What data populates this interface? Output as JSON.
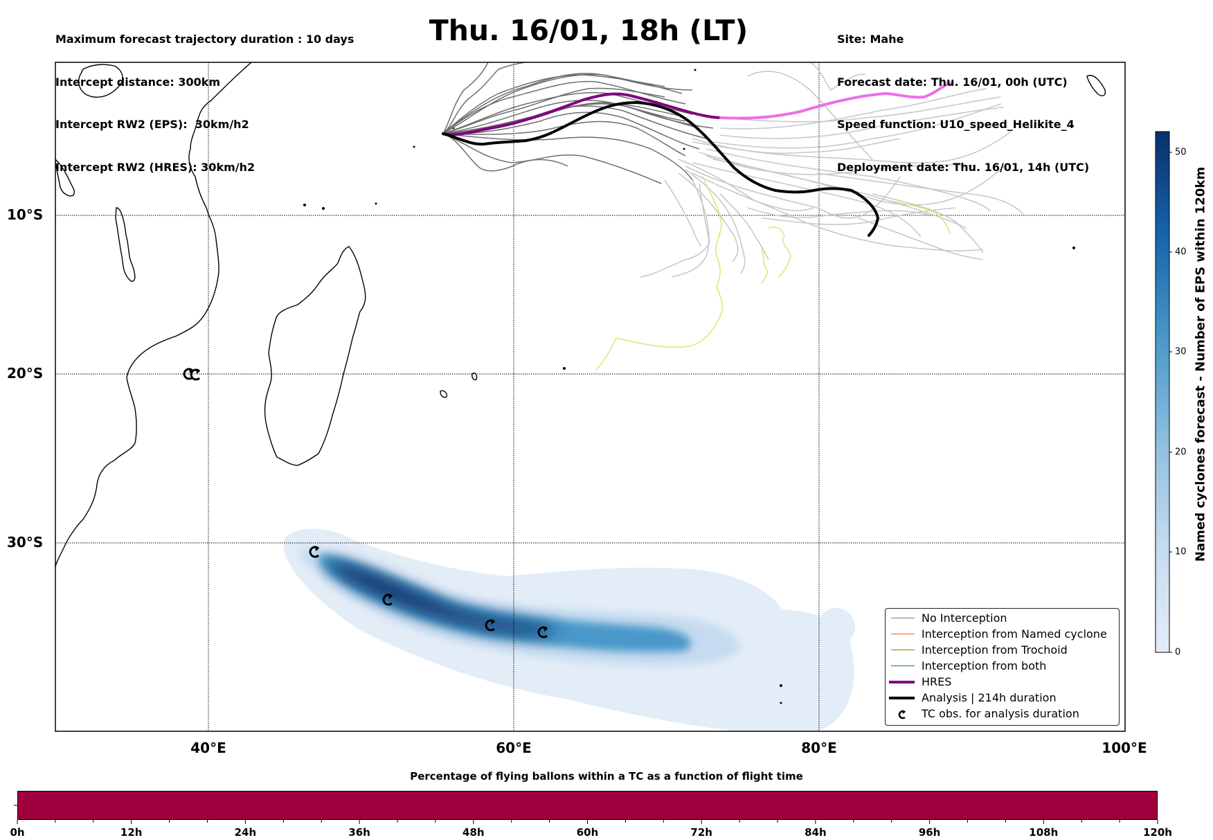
{
  "header": {
    "title": "Thu. 16/01, 18h (LT)",
    "left_lines": [
      "Maximum forecast trajectory duration : 10 days",
      "Intercept distance: 300km",
      "Intercept RW2 (EPS):  30km/h2",
      "Intercept RW2 (HRES): 30km/h2"
    ],
    "right_lines": [
      "Site: Mahe",
      "Forecast date: Thu. 16/01, 00h (UTC)",
      "Speed function: U10_speed_Helikite_4",
      "Deployment date: Thu. 16/01, 14h (UTC)"
    ]
  },
  "map": {
    "lat_labels": [
      "10°S",
      "20°S",
      "30°S"
    ],
    "lon_labels": [
      "40°E",
      "60°E",
      "80°E",
      "100°E"
    ],
    "colors": {
      "no_interception": "#808080",
      "named_cyclone": "#ff5a1f",
      "trochoid": "#808000",
      "both": "#1a8a1a",
      "hres": "#800080",
      "hres_late": "#ee6ee8",
      "analysis": "#000000",
      "late_eps": "#c8c8c8",
      "yellow_eps": "#e8e070",
      "density_max": "#08306b",
      "density_min": "#deebf7"
    }
  },
  "legend": {
    "items": [
      {
        "label": "No Interception",
        "color": "#808080",
        "style": "thin"
      },
      {
        "label": "Interception from Named cyclone",
        "color": "#ff5a1f",
        "style": "thin"
      },
      {
        "label": "Interception from Trochoid",
        "color": "#808000",
        "style": "thin"
      },
      {
        "label": "Interception from both",
        "color": "#1a8a1a",
        "style": "thin"
      },
      {
        "label": "HRES",
        "color": "#800080",
        "style": "thick"
      },
      {
        "label": "Analysis | 214h duration",
        "color": "#000000",
        "style": "thick"
      },
      {
        "label": "TC obs. for analysis duration",
        "color": "#000000",
        "style": "symbol",
        "icon": "cyclone-symbol-icon"
      }
    ]
  },
  "colorbar": {
    "title": "Named cyclones forecast - Number of EPS within 120km",
    "ticks": [
      "0",
      "10",
      "20",
      "30",
      "40",
      "50"
    ],
    "range": [
      0,
      52
    ]
  },
  "flight_time_bar": {
    "title": "Percentage of flying ballons within a TC as a function of flight time",
    "ticks": [
      "0h",
      "12h",
      "24h",
      "36h",
      "48h",
      "60h",
      "72h",
      "84h",
      "96h",
      "108h",
      "120h"
    ],
    "color": "#9e003d",
    "range_hours": [
      0,
      120
    ]
  }
}
